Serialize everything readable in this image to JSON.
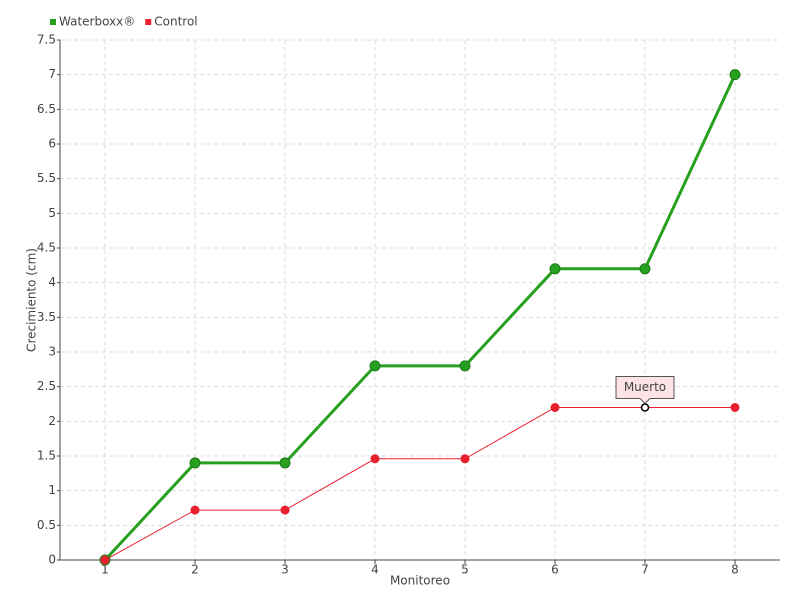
{
  "chart_data": {
    "type": "line",
    "x_label": "Monitoreo",
    "y_label": "Crecimiento (cm)",
    "x": [
      1,
      2,
      3,
      4,
      5,
      6,
      7,
      8
    ],
    "xlim": [
      0.5,
      8.5
    ],
    "xticks": [
      1,
      2,
      3,
      4,
      5,
      6,
      7,
      8
    ],
    "ylim": [
      0,
      7.5
    ],
    "yticks": [
      0,
      0.5,
      1,
      1.5,
      2,
      2.5,
      3,
      3.5,
      4,
      4.5,
      5,
      5.5,
      6,
      6.5,
      7,
      7.5
    ],
    "grid": true,
    "legend": "top-left",
    "series": [
      {
        "name": "Waterboxx®",
        "color": "#27a020",
        "values": [
          0,
          1.4,
          1.4,
          2.8,
          2.8,
          4.2,
          4.2,
          7.0
        ]
      },
      {
        "name": "Control",
        "color": "#e8202f",
        "values": [
          0,
          0.72,
          0.72,
          1.46,
          1.46,
          2.2,
          2.2,
          2.2
        ]
      }
    ],
    "annotations": [
      {
        "text": "Muerto",
        "x": 7,
        "y": 2.2
      }
    ]
  }
}
